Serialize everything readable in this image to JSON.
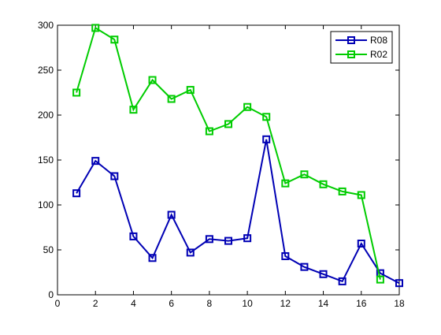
{
  "chart_data": {
    "type": "line",
    "title": "",
    "xlabel": "",
    "ylabel": "",
    "xlim": [
      0,
      18
    ],
    "ylim": [
      0,
      300
    ],
    "xticks": [
      0,
      2,
      4,
      6,
      8,
      10,
      12,
      14,
      16,
      18
    ],
    "yticks": [
      0,
      50,
      100,
      150,
      200,
      250,
      300
    ],
    "grid": false,
    "legend_position": "top-right",
    "series": [
      {
        "name": "R08",
        "color": "#0000b4",
        "marker": "square",
        "x": [
          1,
          2,
          3,
          4,
          5,
          6,
          7,
          8,
          9,
          10,
          11,
          12,
          13,
          14,
          15,
          16,
          17,
          18
        ],
        "y": [
          113,
          149,
          132,
          65,
          41,
          89,
          47,
          62,
          60,
          63,
          173,
          43,
          31,
          23,
          15,
          57,
          24,
          13
        ]
      },
      {
        "name": "R02",
        "color": "#00cc00",
        "marker": "square",
        "x": [
          1,
          2,
          3,
          4,
          5,
          6,
          7,
          8,
          9,
          10,
          11,
          12,
          13,
          14,
          15,
          16,
          17
        ],
        "y": [
          225,
          297,
          284,
          206,
          239,
          218,
          228,
          182,
          190,
          209,
          198,
          124,
          134,
          123,
          115,
          111,
          17
        ]
      }
    ]
  }
}
